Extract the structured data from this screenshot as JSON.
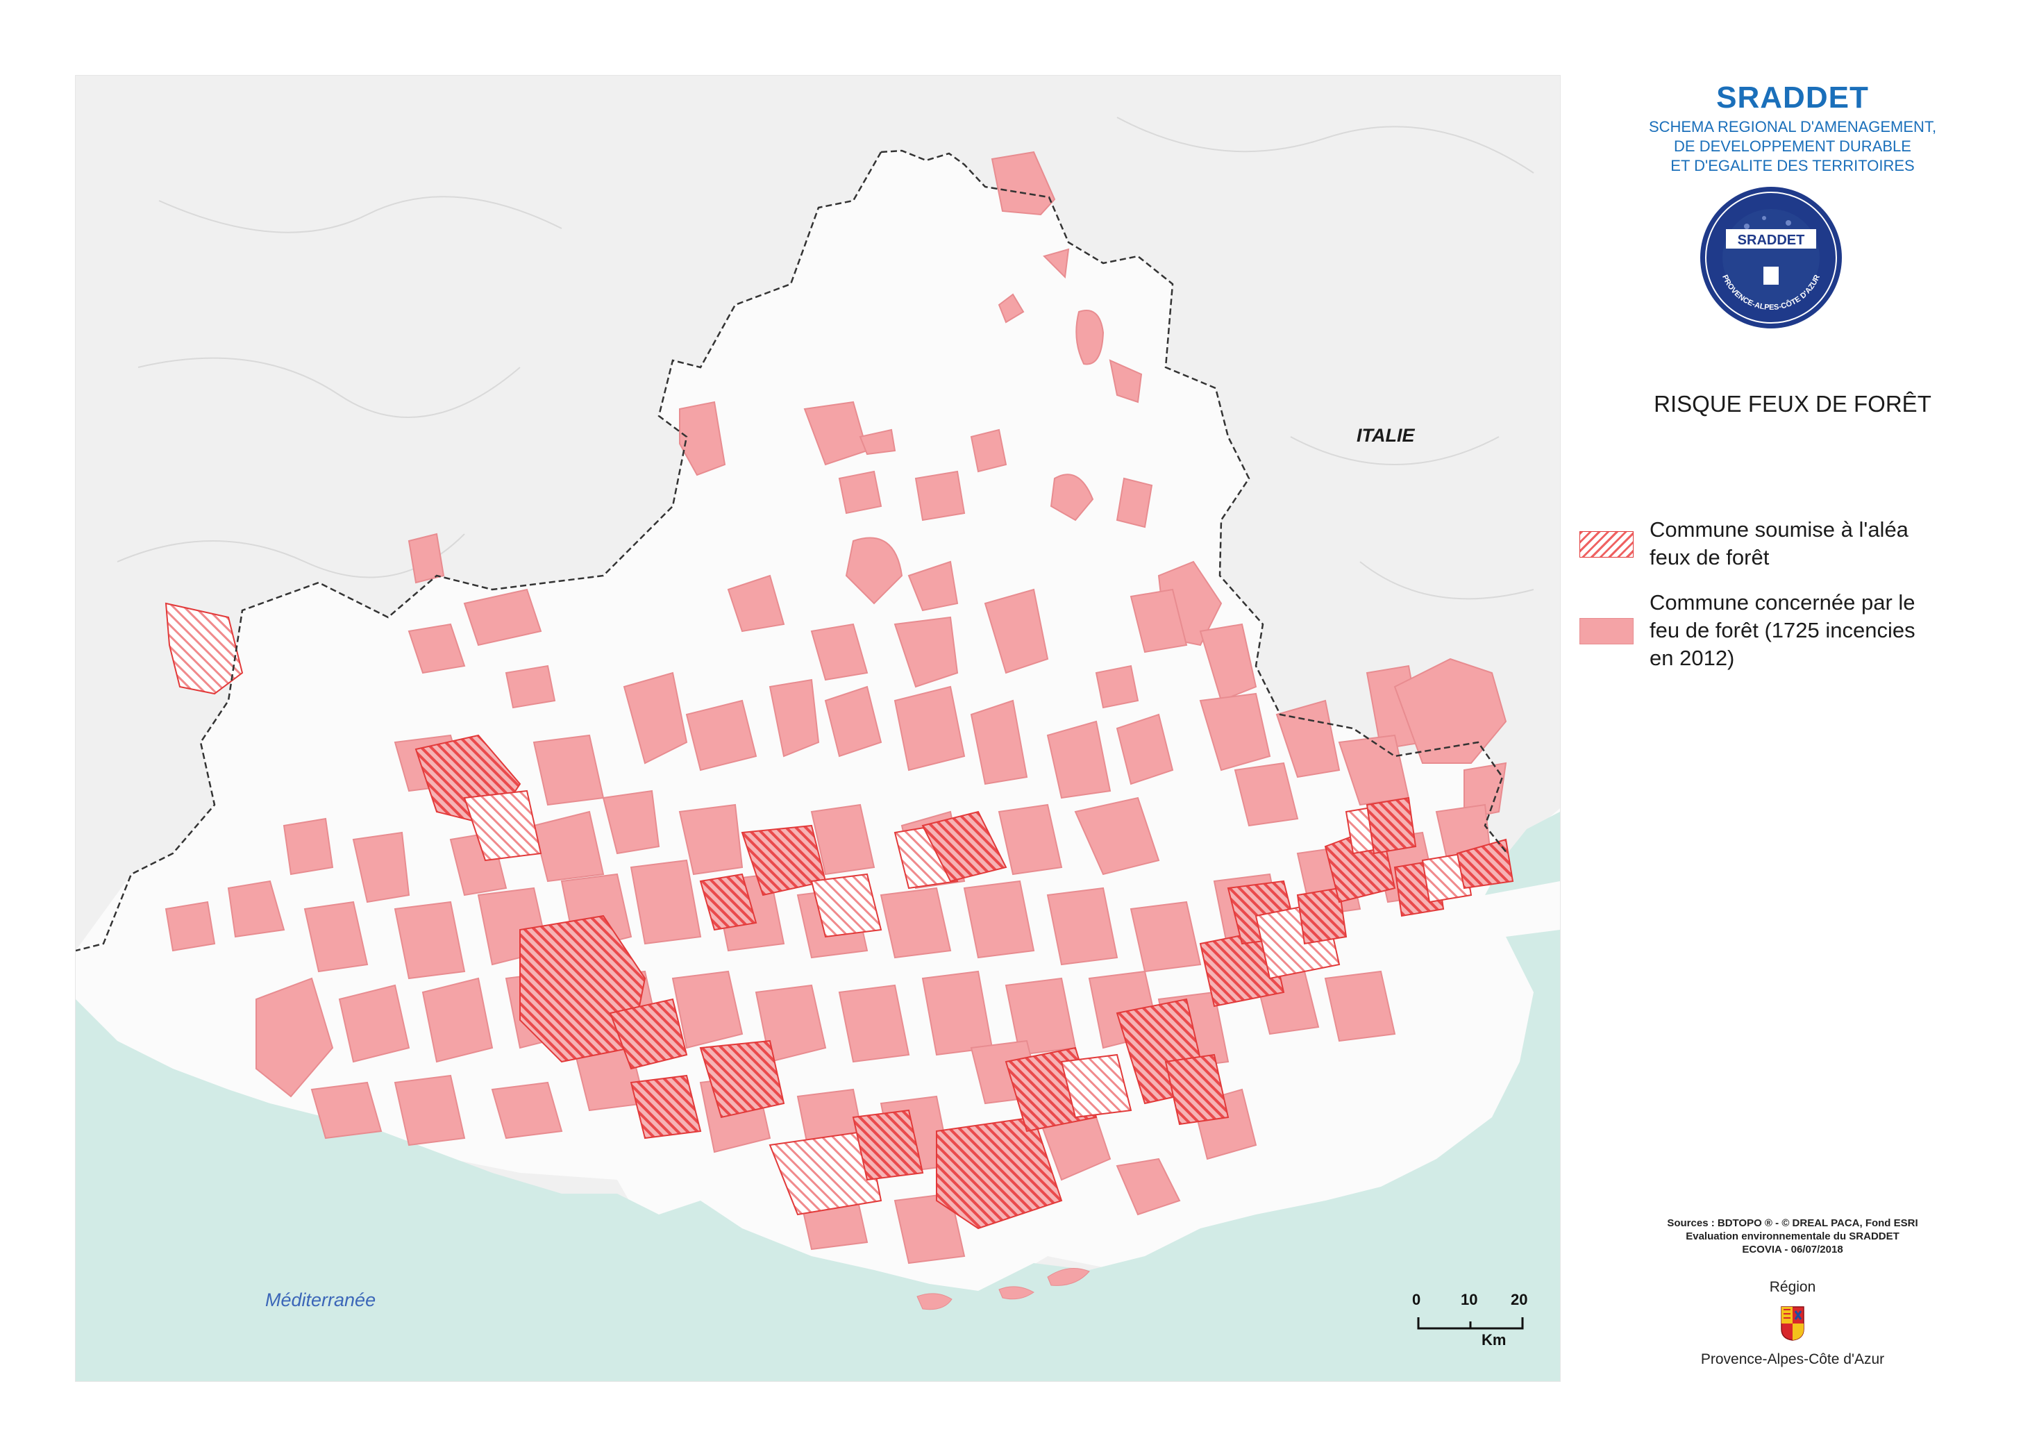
{
  "header": {
    "acronym": "SRADDET",
    "subtitle_lines": [
      "SCHEMA REGIONAL D'AMENAGEMENT,",
      "DE DEVELOPPEMENT DURABLE",
      "ET D'EGALITE DES TERRITOIRES"
    ]
  },
  "logo": {
    "name": "SRADDET",
    "ring_text": "PROVENCE-ALPES-CÔTE D'AZUR",
    "colors": {
      "primary": "#1f3a8a",
      "accent": "#ffffff"
    }
  },
  "map_title": "RISQUE FEUX DE FORÊT",
  "map": {
    "labels": {
      "country": "ITALIE",
      "sea": "Méditerranée"
    },
    "colors": {
      "background_terrain": "#f0f0f0",
      "region_land": "#fbfbfb",
      "sea": "#d2ebe6",
      "affected_fill": "#f4a3a6",
      "affected_stroke": "#e88c90",
      "hatch": "#ef5a5a",
      "border": "#333333"
    }
  },
  "legend": {
    "items": [
      {
        "label_lines": [
          "Commune soumise à l'aléa",
          "feux de forêt"
        ],
        "style": "hatched"
      },
      {
        "label_lines": [
          "Commune concernée par le",
          "feu de forêt (1725 incencies",
          "en 2012)"
        ],
        "style": "filled"
      }
    ]
  },
  "scale_bar": {
    "ticks": [
      "0",
      "10",
      "20"
    ],
    "unit": "Km"
  },
  "sources": [
    "Sources : BDTOPO ® - © DREAL PACA, Fond ESRI",
    "Evaluation environnementale du SRADDET",
    "ECOVIA - 06/07/2018"
  ],
  "region_block": {
    "label": "Région",
    "name": "Provence-Alpes-Côte d'Azur"
  }
}
